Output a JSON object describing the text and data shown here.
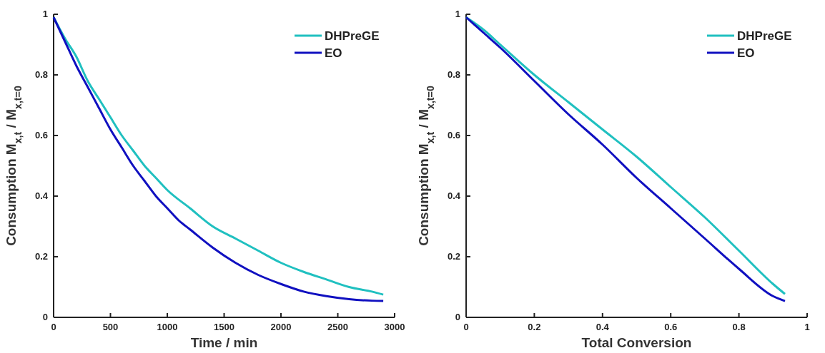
{
  "chart_data": [
    {
      "type": "line",
      "xlabel": "Time / min",
      "ylabel": "Consumption M$_{x,t}$ / M$_{x,t=0}$",
      "xlim": [
        0,
        3000
      ],
      "xticks": [
        0,
        500,
        1000,
        1500,
        2000,
        2500,
        3000
      ],
      "ylim": [
        0,
        1
      ],
      "yticks": [
        0,
        0.2,
        0.4,
        0.6,
        0.8,
        1
      ],
      "legend": "top right",
      "grid": false,
      "series": [
        {
          "name": "DHPreGE",
          "color": "#20c0c0",
          "x": [
            0,
            100,
            200,
            300,
            400,
            500,
            600,
            700,
            800,
            900,
            1000,
            1200,
            1400,
            1600,
            1800,
            2000,
            2200,
            2400,
            2600,
            2800,
            2900
          ],
          "values": [
            0.99,
            0.92,
            0.86,
            0.78,
            0.72,
            0.66,
            0.6,
            0.55,
            0.5,
            0.46,
            0.42,
            0.36,
            0.3,
            0.26,
            0.22,
            0.18,
            0.15,
            0.125,
            0.1,
            0.085,
            0.075
          ]
        },
        {
          "name": "EO",
          "color": "#1010c0",
          "x": [
            0,
            100,
            200,
            300,
            400,
            500,
            600,
            700,
            800,
            900,
            1000,
            1100,
            1200,
            1400,
            1600,
            1800,
            2000,
            2200,
            2400,
            2600,
            2800,
            2900
          ],
          "values": [
            0.99,
            0.91,
            0.83,
            0.76,
            0.69,
            0.62,
            0.56,
            0.5,
            0.45,
            0.4,
            0.36,
            0.32,
            0.29,
            0.23,
            0.18,
            0.14,
            0.11,
            0.085,
            0.07,
            0.06,
            0.055,
            0.054
          ]
        }
      ]
    },
    {
      "type": "line",
      "xlabel": "Total Conversion",
      "ylabel": "Consumption M$_{x,t}$ / M$_{x,t=0}$",
      "xlim": [
        0,
        1
      ],
      "xticks": [
        0,
        0.2,
        0.4,
        0.6,
        0.8,
        1
      ],
      "ylim": [
        0,
        1
      ],
      "yticks": [
        0,
        0.2,
        0.4,
        0.6,
        0.8,
        1
      ],
      "legend": "top right",
      "grid": false,
      "series": [
        {
          "name": "DHPreGE",
          "color": "#20c0c0",
          "x": [
            0,
            0.05,
            0.1,
            0.2,
            0.3,
            0.4,
            0.5,
            0.6,
            0.7,
            0.8,
            0.9,
            0.935
          ],
          "values": [
            0.99,
            0.95,
            0.9,
            0.8,
            0.71,
            0.62,
            0.53,
            0.43,
            0.33,
            0.22,
            0.11,
            0.077
          ]
        },
        {
          "name": "EO",
          "color": "#1010c0",
          "x": [
            0,
            0.05,
            0.1,
            0.2,
            0.3,
            0.4,
            0.5,
            0.6,
            0.7,
            0.8,
            0.9,
            0.935
          ],
          "values": [
            0.99,
            0.94,
            0.89,
            0.78,
            0.67,
            0.57,
            0.46,
            0.36,
            0.26,
            0.16,
            0.07,
            0.054
          ]
        }
      ]
    }
  ]
}
